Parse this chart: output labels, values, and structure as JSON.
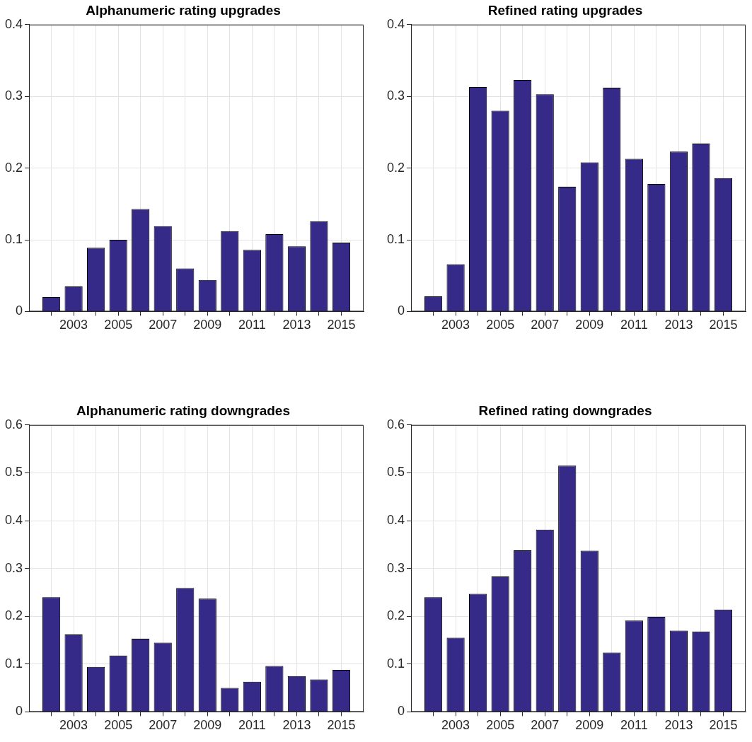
{
  "chart_data": [
    {
      "type": "bar",
      "title": "Alphanumeric rating upgrades",
      "x": [
        2002,
        2003,
        2004,
        2005,
        2006,
        2007,
        2008,
        2009,
        2010,
        2011,
        2012,
        2013,
        2014,
        2015
      ],
      "values": [
        0.02,
        0.035,
        0.089,
        0.1,
        0.143,
        0.119,
        0.06,
        0.044,
        0.112,
        0.086,
        0.108,
        0.091,
        0.126,
        0.096
      ],
      "color": "#352a87",
      "xlim": [
        2001,
        2016
      ],
      "xticks": [
        {
          "value": 2002,
          "label": null
        },
        2003,
        {
          "value": 2004,
          "label": null
        },
        2005,
        {
          "value": 2006,
          "label": null
        },
        2007,
        {
          "value": 2008,
          "label": null
        },
        2009,
        {
          "value": 2010,
          "label": null
        },
        2011,
        {
          "value": 2012,
          "label": null
        },
        2013,
        {
          "value": 2014,
          "label": null
        },
        2015
      ],
      "ylim": [
        0,
        0.4
      ],
      "yticks": [
        0,
        0.1,
        0.2,
        0.3,
        0.4
      ],
      "grid": true
    },
    {
      "type": "bar",
      "title": "Refined rating upgrades",
      "x": [
        2002,
        2003,
        2004,
        2005,
        2006,
        2007,
        2008,
        2009,
        2010,
        2011,
        2012,
        2013,
        2014,
        2015
      ],
      "values": [
        0.021,
        0.066,
        0.313,
        0.28,
        0.323,
        0.303,
        0.174,
        0.208,
        0.312,
        0.213,
        0.178,
        0.223,
        0.234,
        0.186
      ],
      "color": "#352a87",
      "xlim": [
        2001,
        2016
      ],
      "xticks": [
        {
          "value": 2002,
          "label": null
        },
        2003,
        {
          "value": 2004,
          "label": null
        },
        2005,
        {
          "value": 2006,
          "label": null
        },
        2007,
        {
          "value": 2008,
          "label": null
        },
        2009,
        {
          "value": 2010,
          "label": null
        },
        2011,
        {
          "value": 2012,
          "label": null
        },
        2013,
        {
          "value": 2014,
          "label": null
        },
        2015
      ],
      "ylim": [
        0,
        0.4
      ],
      "yticks": [
        0,
        0.1,
        0.2,
        0.3,
        0.4
      ],
      "grid": true
    },
    {
      "type": "bar",
      "title": "Alphanumeric rating downgrades",
      "x": [
        2002,
        2003,
        2004,
        2005,
        2006,
        2007,
        2008,
        2009,
        2010,
        2011,
        2012,
        2013,
        2014,
        2015
      ],
      "values": [
        0.24,
        0.162,
        0.094,
        0.118,
        0.153,
        0.145,
        0.259,
        0.237,
        0.05,
        0.063,
        0.096,
        0.075,
        0.068,
        0.088
      ],
      "color": "#352a87",
      "xlim": [
        2001,
        2016
      ],
      "xticks": [
        {
          "value": 2002,
          "label": null
        },
        2003,
        {
          "value": 2004,
          "label": null
        },
        2005,
        {
          "value": 2006,
          "label": null
        },
        2007,
        {
          "value": 2008,
          "label": null
        },
        2009,
        {
          "value": 2010,
          "label": null
        },
        2011,
        {
          "value": 2012,
          "label": null
        },
        2013,
        {
          "value": 2014,
          "label": null
        },
        2015
      ],
      "ylim": [
        0,
        0.6
      ],
      "yticks": [
        0,
        0.1,
        0.2,
        0.3,
        0.4,
        0.5,
        0.6
      ],
      "grid": true
    },
    {
      "type": "bar",
      "title": "Refined rating downgrades",
      "x": [
        2002,
        2003,
        2004,
        2005,
        2006,
        2007,
        2008,
        2009,
        2010,
        2011,
        2012,
        2013,
        2014,
        2015
      ],
      "values": [
        0.24,
        0.155,
        0.247,
        0.283,
        0.338,
        0.381,
        0.515,
        0.337,
        0.124,
        0.191,
        0.199,
        0.17,
        0.168,
        0.214
      ],
      "color": "#352a87",
      "xlim": [
        2001,
        2016
      ],
      "xticks": [
        {
          "value": 2002,
          "label": null
        },
        2003,
        {
          "value": 2004,
          "label": null
        },
        2005,
        {
          "value": 2006,
          "label": null
        },
        2007,
        {
          "value": 2008,
          "label": null
        },
        2009,
        {
          "value": 2010,
          "label": null
        },
        2011,
        {
          "value": 2012,
          "label": null
        },
        2013,
        {
          "value": 2014,
          "label": null
        },
        2015
      ],
      "ylim": [
        0,
        0.6
      ],
      "yticks": [
        0,
        0.1,
        0.2,
        0.3,
        0.4,
        0.5,
        0.6
      ],
      "grid": true
    }
  ]
}
